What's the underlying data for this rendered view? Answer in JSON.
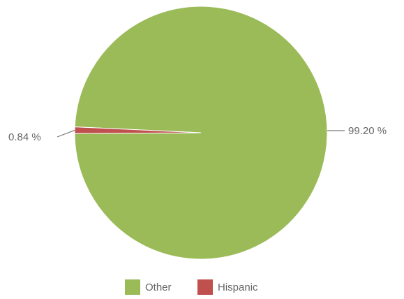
{
  "chart_data": {
    "type": "pie",
    "slices": [
      {
        "name": "Other",
        "value": 99.2,
        "label": "99.20 %",
        "color": "#9bbb59"
      },
      {
        "name": "Hispanic",
        "value": 0.84,
        "label": "0.84 %",
        "color": "#c0504d"
      }
    ],
    "legend": {
      "position": "bottom",
      "items": [
        "Other",
        "Hispanic"
      ]
    }
  }
}
